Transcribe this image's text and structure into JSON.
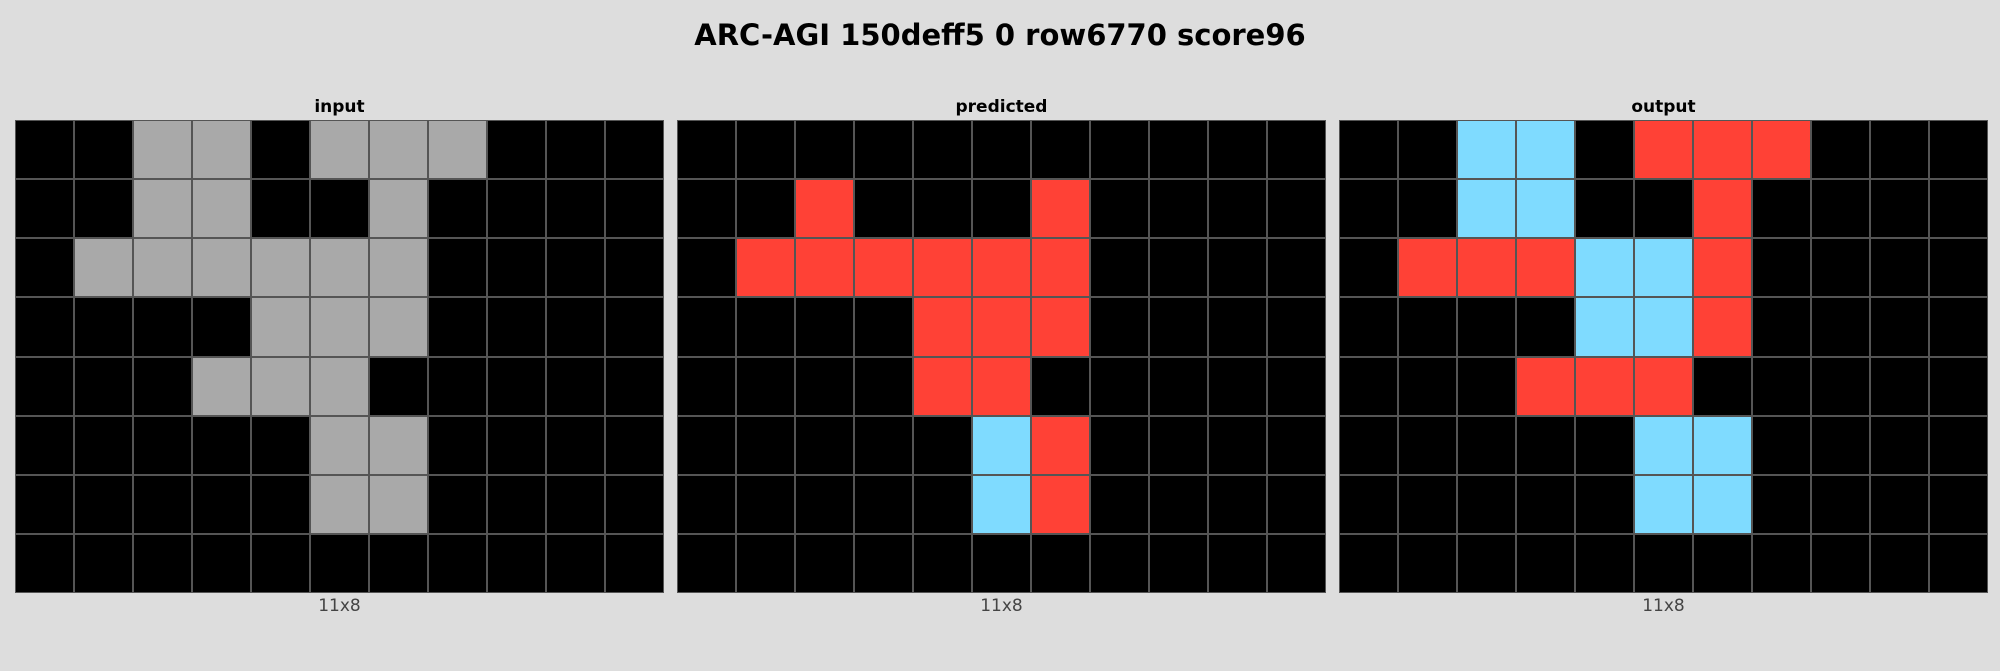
{
  "title": "ARC-AGI 150deff5 0 row6770 score96",
  "palette": {
    "0": "#000000",
    "5": "#a9a9a9",
    "2": "#ff4136",
    "8": "#7fdbff"
  },
  "panels": [
    {
      "label": "input",
      "dims": "11x8",
      "grid": [
        [
          0,
          0,
          5,
          5,
          0,
          5,
          5,
          5,
          0,
          0,
          0
        ],
        [
          0,
          0,
          5,
          5,
          0,
          0,
          5,
          0,
          0,
          0,
          0
        ],
        [
          0,
          5,
          5,
          5,
          5,
          5,
          5,
          0,
          0,
          0,
          0
        ],
        [
          0,
          0,
          0,
          0,
          5,
          5,
          5,
          0,
          0,
          0,
          0
        ],
        [
          0,
          0,
          0,
          5,
          5,
          5,
          0,
          0,
          0,
          0,
          0
        ],
        [
          0,
          0,
          0,
          0,
          0,
          5,
          5,
          0,
          0,
          0,
          0
        ],
        [
          0,
          0,
          0,
          0,
          0,
          5,
          5,
          0,
          0,
          0,
          0
        ],
        [
          0,
          0,
          0,
          0,
          0,
          0,
          0,
          0,
          0,
          0,
          0
        ]
      ]
    },
    {
      "label": "predicted",
      "dims": "11x8",
      "grid": [
        [
          0,
          0,
          0,
          0,
          0,
          0,
          0,
          0,
          0,
          0,
          0
        ],
        [
          0,
          0,
          2,
          0,
          0,
          0,
          2,
          0,
          0,
          0,
          0
        ],
        [
          0,
          2,
          2,
          2,
          2,
          2,
          2,
          0,
          0,
          0,
          0
        ],
        [
          0,
          0,
          0,
          0,
          2,
          2,
          2,
          0,
          0,
          0,
          0
        ],
        [
          0,
          0,
          0,
          0,
          2,
          2,
          0,
          0,
          0,
          0,
          0
        ],
        [
          0,
          0,
          0,
          0,
          0,
          8,
          2,
          0,
          0,
          0,
          0
        ],
        [
          0,
          0,
          0,
          0,
          0,
          8,
          2,
          0,
          0,
          0,
          0
        ],
        [
          0,
          0,
          0,
          0,
          0,
          0,
          0,
          0,
          0,
          0,
          0
        ]
      ]
    },
    {
      "label": "output",
      "dims": "11x8",
      "grid": [
        [
          0,
          0,
          8,
          8,
          0,
          2,
          2,
          2,
          0,
          0,
          0
        ],
        [
          0,
          0,
          8,
          8,
          0,
          0,
          2,
          0,
          0,
          0,
          0
        ],
        [
          0,
          2,
          2,
          2,
          8,
          8,
          2,
          0,
          0,
          0,
          0
        ],
        [
          0,
          0,
          0,
          0,
          8,
          8,
          2,
          0,
          0,
          0,
          0
        ],
        [
          0,
          0,
          0,
          2,
          2,
          2,
          0,
          0,
          0,
          0,
          0
        ],
        [
          0,
          0,
          0,
          0,
          0,
          8,
          8,
          0,
          0,
          0,
          0
        ],
        [
          0,
          0,
          0,
          0,
          0,
          8,
          8,
          0,
          0,
          0,
          0
        ],
        [
          0,
          0,
          0,
          0,
          0,
          0,
          0,
          0,
          0,
          0,
          0
        ]
      ]
    }
  ]
}
